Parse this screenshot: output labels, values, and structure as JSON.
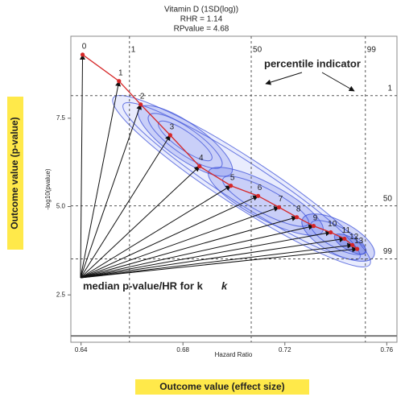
{
  "chart_data": {
    "type": "line",
    "title": "Vitamin D (1SD(log))",
    "subtitle": [
      "RHR = 1.14",
      "RPvalue = 4.68"
    ],
    "x_label": "Hazard Ratio",
    "y_label": "-log10(pvalue)",
    "x": [
      0.6406,
      0.6549,
      0.6634,
      0.675,
      0.6865,
      0.6988,
      0.7095,
      0.7177,
      0.7247,
      0.7313,
      0.738,
      0.7434,
      0.7465,
      0.7484
    ],
    "values": [
      9.3,
      8.55,
      7.89,
      7.02,
      6.14,
      5.59,
      5.3,
      4.98,
      4.7,
      4.45,
      4.27,
      4.09,
      3.91,
      3.8
    ],
    "point_labels": [
      "0",
      "1",
      "2",
      "3",
      "4",
      "5",
      "6",
      "7",
      "8",
      "9",
      "10",
      "11",
      "12",
      "13"
    ],
    "color": "#d62728",
    "xlim": [
      0.636,
      0.764
    ],
    "ylim": [
      1.16,
      9.82
    ],
    "xticks": [
      0.64,
      0.68,
      0.72,
      0.76
    ],
    "yticks": [
      2.5,
      {
        "value": 5,
        "label": "5.0"
      },
      7.5
    ],
    "percentile_lines": {
      "x": [
        0.659,
        0.7068,
        0.7516
      ],
      "y": [
        8.14,
        5.02,
        3.52
      ],
      "labels": [
        "1",
        "50",
        "99"
      ]
    },
    "reference_line": 1.34,
    "annotations": [
      "percentile indicator",
      "median p-value/HR for k"
    ],
    "side_labels": [
      "Outcome value (p-value)",
      "Outcome value (effect size)"
    ]
  }
}
